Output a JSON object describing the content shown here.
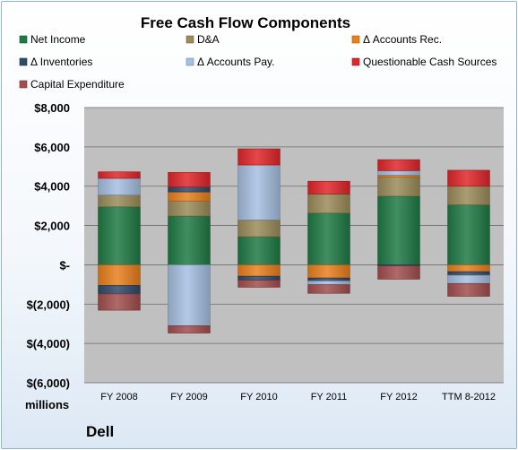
{
  "chart_data": {
    "type": "bar",
    "stacked": true,
    "title": "Free Cash Flow Components",
    "ylabel": "millions",
    "company": "Dell",
    "categories": [
      "FY 2008",
      "FY 2009",
      "FY 2010",
      "FY 2011",
      "FY 2012",
      "TTM 8-2012"
    ],
    "ylim": [
      -6000,
      8000
    ],
    "yticks": [
      8000,
      6000,
      4000,
      2000,
      0,
      -2000,
      -4000,
      -6000
    ],
    "ytick_labels": [
      "$8,000",
      "$6,000",
      "$4,000",
      "$2,000",
      "$-",
      "$(2,000)",
      "$(4,000)",
      "$(6,000)"
    ],
    "grid": true,
    "legend_placement": "top",
    "series": [
      {
        "name": "Net Income",
        "color": "#1f7a45",
        "values": [
          2950,
          2480,
          1430,
          2630,
          3490,
          3050
        ]
      },
      {
        "name": "D&A",
        "color": "#9b8c5a",
        "values": [
          600,
          770,
          850,
          970,
          970,
          950
        ]
      },
      {
        "name": "Δ Accounts Rec.",
        "color": "#e8801e",
        "values": [
          -1050,
          460,
          -580,
          -670,
          100,
          -350
        ]
      },
      {
        "name": "Δ Inventories",
        "color": "#2f4a68",
        "values": [
          -430,
          250,
          -200,
          -150,
          -50,
          -180
        ]
      },
      {
        "name": "Δ Accounts Pay.",
        "color": "#a6bfe0",
        "values": [
          850,
          -3100,
          2800,
          -190,
          230,
          -420
        ]
      },
      {
        "name": "Questionable Cash Sources",
        "color": "#e0262a",
        "values": [
          330,
          740,
          820,
          650,
          560,
          810
        ]
      },
      {
        "name": "Capital Expenditure",
        "color": "#a24e4f",
        "values": [
          -830,
          -370,
          -360,
          -440,
          -680,
          -650
        ]
      }
    ]
  }
}
